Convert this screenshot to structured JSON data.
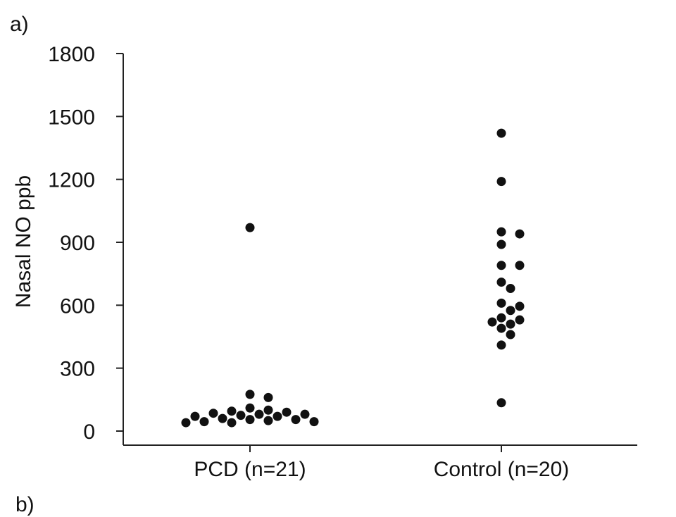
{
  "panel_labels": {
    "a": "a)",
    "b": "b)"
  },
  "chart_data": {
    "type": "scatter",
    "title": "",
    "xlabel": "",
    "ylabel": "Nasal NO ppb",
    "ylim": [
      0,
      1800
    ],
    "yticks": [
      0,
      300,
      600,
      900,
      1200,
      1500,
      1800
    ],
    "categories": [
      "PCD (n=21)",
      "Control (n=20)"
    ],
    "grid": false,
    "legend": "none",
    "marker_color": "#111111",
    "series": [
      {
        "category": "PCD (n=21)",
        "values": [
          970,
          175,
          160,
          110,
          100,
          95,
          90,
          85,
          80,
          80,
          75,
          70,
          70,
          60,
          55,
          55,
          50,
          45,
          45,
          40,
          40
        ]
      },
      {
        "category": "Control (n=20)",
        "values": [
          1420,
          1190,
          950,
          940,
          890,
          790,
          790,
          710,
          680,
          610,
          595,
          575,
          540,
          530,
          520,
          510,
          490,
          460,
          410,
          135
        ]
      }
    ]
  }
}
